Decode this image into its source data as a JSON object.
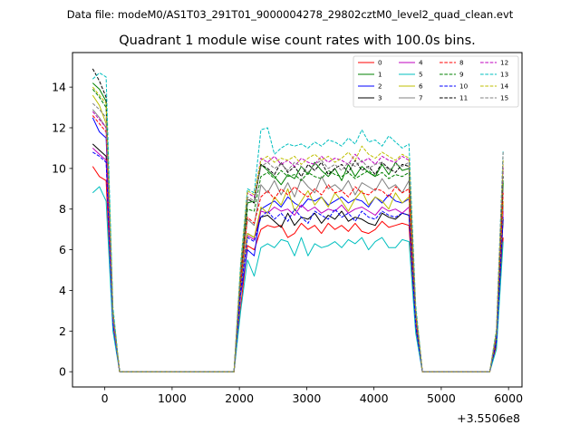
{
  "figure": {
    "suptitle": "Data file: modeM0/AS1T03_291T01_9000004278_29802cztM0_level2_quad_clean.evt"
  },
  "chart_data": {
    "type": "line",
    "title": "Quadrant 1 module wise count rates with 100.0s bins.",
    "xlabel": "",
    "ylabel": "",
    "x_offset_label": "+3.5506e8",
    "xlim": [
      -480,
      6200
    ],
    "ylim": [
      -0.75,
      15.7
    ],
    "x_ticks": [
      0,
      1000,
      2000,
      3000,
      4000,
      5000,
      6000
    ],
    "x_tick_labels": [
      "0",
      "1000",
      "2000",
      "3000",
      "4000",
      "5000",
      "6000"
    ],
    "y_ticks": [
      0,
      2,
      4,
      6,
      8,
      10,
      12,
      14
    ],
    "y_tick_labels": [
      "0",
      "2",
      "4",
      "6",
      "8",
      "10",
      "12",
      "14"
    ],
    "grid": false,
    "legend": {
      "placement": "top-right",
      "columns": 4
    },
    "x": [
      -180,
      -80,
      20,
      120,
      220,
      320,
      420,
      520,
      620,
      720,
      820,
      920,
      1020,
      1120,
      1220,
      1320,
      1420,
      1520,
      1620,
      1720,
      1820,
      1920,
      2020,
      2120,
      2220,
      2320,
      2420,
      2520,
      2620,
      2720,
      2820,
      2920,
      3020,
      3120,
      3220,
      3320,
      3420,
      3520,
      3620,
      3720,
      3820,
      3920,
      4020,
      4120,
      4220,
      4320,
      4420,
      4520,
      4620,
      4720,
      4820,
      4920,
      5020,
      5120,
      5220,
      5320,
      5420,
      5520,
      5620,
      5720,
      5820,
      5920
    ],
    "series": [
      {
        "name": "0",
        "color": "#ff0000",
        "dash": false,
        "values": [
          10.1,
          9.6,
          9.4,
          2.3,
          0,
          0,
          0,
          0,
          0,
          0,
          0,
          0,
          0,
          0,
          0,
          0,
          0,
          0,
          0,
          0,
          0,
          0,
          3.2,
          6.2,
          6.0,
          7.0,
          7.2,
          7.1,
          7.2,
          6.6,
          6.8,
          7.3,
          7.0,
          7.2,
          6.8,
          7.3,
          7.0,
          7.2,
          6.9,
          7.3,
          6.9,
          6.8,
          7.0,
          7.4,
          7.1,
          7.2,
          7.3,
          7.2,
          2.2,
          0,
          0,
          0,
          0,
          0,
          0,
          0,
          0,
          0,
          0,
          0,
          1.3,
          6.6
        ]
      },
      {
        "name": "1",
        "color": "#008000",
        "dash": false,
        "values": [
          14.2,
          13.9,
          13.3,
          2.9,
          0,
          0,
          0,
          0,
          0,
          0,
          0,
          0,
          0,
          0,
          0,
          0,
          0,
          0,
          0,
          0,
          0,
          0,
          4.8,
          8.3,
          8.4,
          10.2,
          9.9,
          9.6,
          9.2,
          9.7,
          9.5,
          10.1,
          9.7,
          10.3,
          9.9,
          9.6,
          10.0,
          9.4,
          10.2,
          9.6,
          10.1,
          9.8,
          9.6,
          10.2,
          9.7,
          10.3,
          9.9,
          10.0,
          3.0,
          0,
          0,
          0,
          0,
          0,
          0,
          0,
          0,
          0,
          0,
          0,
          1.8,
          9.3
        ]
      },
      {
        "name": "2",
        "color": "#0000ff",
        "dash": false,
        "values": [
          12.5,
          11.8,
          11.5,
          2.6,
          0,
          0,
          0,
          0,
          0,
          0,
          0,
          0,
          0,
          0,
          0,
          0,
          0,
          0,
          0,
          0,
          0,
          0,
          3.8,
          6.0,
          5.7,
          8.0,
          8.2,
          8.4,
          8.1,
          8.6,
          8.3,
          8.1,
          8.5,
          8.4,
          8.6,
          8.2,
          8.4,
          8.6,
          8.3,
          8.5,
          8.4,
          8.1,
          8.6,
          8.3,
          8.7,
          8.4,
          8.3,
          8.5,
          2.5,
          0,
          0,
          0,
          0,
          0,
          0,
          0,
          0,
          0,
          0,
          0,
          1.5,
          8.2
        ]
      },
      {
        "name": "3",
        "color": "#000000",
        "dash": false,
        "values": [
          11.2,
          10.9,
          10.6,
          2.5,
          0,
          0,
          0,
          0,
          0,
          0,
          0,
          0,
          0,
          0,
          0,
          0,
          0,
          0,
          0,
          0,
          0,
          0,
          4.2,
          6.8,
          6.6,
          7.6,
          7.7,
          7.4,
          7.1,
          7.8,
          7.2,
          7.6,
          7.5,
          7.8,
          7.3,
          7.7,
          7.5,
          7.9,
          7.4,
          7.6,
          7.5,
          7.3,
          7.2,
          7.8,
          7.6,
          7.5,
          7.8,
          7.7,
          2.3,
          0,
          0,
          0,
          0,
          0,
          0,
          0,
          0,
          0,
          0,
          0,
          1.5,
          7.5
        ]
      },
      {
        "name": "4",
        "color": "#bf00bf",
        "dash": false,
        "values": [
          11.0,
          10.7,
          10.4,
          2.5,
          0,
          0,
          0,
          0,
          0,
          0,
          0,
          0,
          0,
          0,
          0,
          0,
          0,
          0,
          0,
          0,
          0,
          0,
          4.1,
          6.7,
          6.5,
          7.9,
          7.8,
          8.1,
          7.9,
          8.0,
          7.7,
          8.2,
          7.9,
          8.1,
          7.8,
          8.0,
          7.9,
          8.2,
          7.8,
          8.0,
          8.1,
          7.9,
          7.7,
          8.1,
          7.9,
          8.0,
          7.8,
          8.1,
          2.4,
          0,
          0,
          0,
          0,
          0,
          0,
          0,
          0,
          0,
          0,
          0,
          1.6,
          7.9
        ]
      },
      {
        "name": "5",
        "color": "#00bfbf",
        "dash": false,
        "values": [
          8.8,
          9.1,
          8.4,
          2.0,
          0,
          0,
          0,
          0,
          0,
          0,
          0,
          0,
          0,
          0,
          0,
          0,
          0,
          0,
          0,
          0,
          0,
          0,
          3.0,
          5.5,
          4.7,
          6.1,
          6.3,
          6.1,
          6.5,
          6.4,
          5.7,
          6.6,
          5.7,
          6.3,
          6.1,
          6.2,
          6.4,
          6.1,
          6.5,
          6.3,
          6.6,
          6.0,
          6.4,
          6.6,
          6.1,
          6.1,
          6.5,
          6.4,
          1.9,
          0,
          0,
          0,
          0,
          0,
          0,
          0,
          0,
          0,
          0,
          0,
          1.1,
          6.4
        ]
      },
      {
        "name": "6",
        "color": "#bfbf00",
        "dash": false,
        "values": [
          13.6,
          13.1,
          12.2,
          2.8,
          0,
          0,
          0,
          0,
          0,
          0,
          0,
          0,
          0,
          0,
          0,
          0,
          0,
          0,
          0,
          0,
          0,
          0,
          4.0,
          6.8,
          6.6,
          8.1,
          7.8,
          8.6,
          8.2,
          9.0,
          7.9,
          8.4,
          8.9,
          8.2,
          8.6,
          8.1,
          8.8,
          8.4,
          7.9,
          8.5,
          8.9,
          8.2,
          8.6,
          8.4,
          8.0,
          8.8,
          8.3,
          8.6,
          2.6,
          0,
          0,
          0,
          0,
          0,
          0,
          0,
          0,
          0,
          0,
          0,
          1.6,
          8.4
        ]
      },
      {
        "name": "7",
        "color": "#808080",
        "dash": false,
        "values": [
          12.9,
          12.5,
          12.0,
          2.7,
          0,
          0,
          0,
          0,
          0,
          0,
          0,
          0,
          0,
          0,
          0,
          0,
          0,
          0,
          0,
          0,
          0,
          0,
          4.5,
          7.5,
          7.2,
          9.2,
          8.8,
          9.4,
          8.7,
          9.3,
          8.6,
          9.5,
          9.1,
          8.8,
          9.6,
          9.0,
          9.2,
          8.9,
          9.4,
          8.7,
          9.3,
          9.1,
          8.9,
          9.5,
          9.0,
          9.2,
          8.8,
          9.4,
          2.8,
          0,
          0,
          0,
          0,
          0,
          0,
          0,
          0,
          0,
          0,
          0,
          1.7,
          9.0
        ]
      },
      {
        "name": "8",
        "color": "#ff0000",
        "dash": true,
        "values": [
          12.6,
          12.2,
          11.8,
          2.6,
          0,
          0,
          0,
          0,
          0,
          0,
          0,
          0,
          0,
          0,
          0,
          0,
          0,
          0,
          0,
          0,
          0,
          0,
          4.5,
          7.6,
          7.3,
          8.6,
          8.9,
          8.5,
          9.0,
          8.7,
          9.1,
          8.8,
          8.6,
          9.0,
          8.7,
          9.2,
          8.8,
          8.9,
          8.6,
          9.1,
          8.8,
          8.7,
          9.0,
          8.9,
          8.6,
          9.1,
          8.8,
          9.0,
          2.7,
          0,
          0,
          0,
          0,
          0,
          0,
          0,
          0,
          0,
          0,
          0,
          1.7,
          8.8
        ]
      },
      {
        "name": "9",
        "color": "#008000",
        "dash": true,
        "values": [
          13.9,
          13.5,
          13.0,
          2.9,
          0,
          0,
          0,
          0,
          0,
          0,
          0,
          0,
          0,
          0,
          0,
          0,
          0,
          0,
          0,
          0,
          0,
          0,
          4.9,
          8.0,
          7.9,
          9.6,
          9.8,
          9.5,
          9.9,
          9.6,
          9.7,
          9.4,
          9.8,
          9.6,
          9.5,
          9.9,
          9.7,
          9.6,
          9.8,
          9.5,
          9.7,
          9.9,
          9.6,
          9.8,
          9.5,
          9.7,
          9.6,
          9.8,
          2.9,
          0,
          0,
          0,
          0,
          0,
          0,
          0,
          0,
          0,
          0,
          0,
          1.8,
          9.6
        ]
      },
      {
        "name": "10",
        "color": "#0000ff",
        "dash": true,
        "values": [
          10.8,
          10.6,
          10.3,
          2.4,
          0,
          0,
          0,
          0,
          0,
          0,
          0,
          0,
          0,
          0,
          0,
          0,
          0,
          0,
          0,
          0,
          0,
          0,
          4.0,
          6.6,
          6.4,
          7.6,
          7.9,
          7.5,
          7.8,
          7.4,
          8.0,
          7.6,
          7.3,
          7.9,
          7.7,
          7.5,
          8.0,
          7.6,
          7.8,
          7.4,
          7.9,
          7.6,
          7.5,
          7.9,
          7.7,
          7.6,
          7.8,
          7.7,
          2.3,
          0,
          0,
          0,
          0,
          0,
          0,
          0,
          0,
          0,
          0,
          0,
          1.5,
          7.6
        ]
      },
      {
        "name": "11",
        "color": "#000000",
        "dash": true,
        "values": [
          14.9,
          14.3,
          13.5,
          3.0,
          0,
          0,
          0,
          0,
          0,
          0,
          0,
          0,
          0,
          0,
          0,
          0,
          0,
          0,
          0,
          0,
          0,
          0,
          5.0,
          8.5,
          8.3,
          10.2,
          10.0,
          9.7,
          10.3,
          9.8,
          10.1,
          9.6,
          10.2,
          9.9,
          10.3,
          9.7,
          10.0,
          10.2,
          9.8,
          10.4,
          9.9,
          10.1,
          9.7,
          10.3,
          10.0,
          9.8,
          10.2,
          10.1,
          3.0,
          0,
          0,
          0,
          0,
          0,
          0,
          0,
          0,
          0,
          0,
          0,
          1.9,
          10.0
        ]
      },
      {
        "name": "12",
        "color": "#bf00bf",
        "dash": true,
        "values": [
          12.8,
          12.4,
          12.0,
          2.7,
          0,
          0,
          0,
          0,
          0,
          0,
          0,
          0,
          0,
          0,
          0,
          0,
          0,
          0,
          0,
          0,
          0,
          0,
          5.1,
          8.8,
          8.6,
          10.5,
          10.3,
          10.6,
          10.2,
          10.4,
          10.1,
          10.5,
          10.3,
          10.2,
          10.6,
          10.3,
          10.5,
          10.4,
          10.2,
          10.7,
          10.3,
          10.5,
          10.2,
          10.6,
          10.4,
          10.3,
          10.6,
          10.4,
          3.1,
          0,
          0,
          0,
          0,
          0,
          0,
          0,
          0,
          0,
          0,
          0,
          1.9,
          10.2
        ]
      },
      {
        "name": "13",
        "color": "#00bfbf",
        "dash": true,
        "values": [
          14.4,
          14.7,
          14.5,
          3.2,
          0,
          0,
          0,
          0,
          0,
          0,
          0,
          0,
          0,
          0,
          0,
          0,
          0,
          0,
          0,
          0,
          0,
          0,
          5.4,
          9.0,
          8.8,
          11.9,
          12.0,
          10.7,
          11.0,
          11.2,
          11.1,
          11.2,
          11.0,
          11.3,
          11.1,
          11.4,
          11.3,
          11.1,
          11.5,
          11.2,
          11.9,
          11.3,
          11.4,
          11.1,
          11.6,
          11.3,
          11.0,
          11.2,
          3.3,
          0,
          0,
          0,
          0,
          0,
          0,
          0,
          0,
          0,
          0,
          0,
          2.1,
          10.9
        ]
      },
      {
        "name": "14",
        "color": "#bfbf00",
        "dash": true,
        "values": [
          14.0,
          13.6,
          13.2,
          2.9,
          0,
          0,
          0,
          0,
          0,
          0,
          0,
          0,
          0,
          0,
          0,
          0,
          0,
          0,
          0,
          0,
          0,
          0,
          5.2,
          8.9,
          8.7,
          10.4,
          10.6,
          10.3,
          10.5,
          10.4,
          10.6,
          10.2,
          10.5,
          10.7,
          10.4,
          10.6,
          10.3,
          10.5,
          10.8,
          10.4,
          11.1,
          10.7,
          10.5,
          10.8,
          10.6,
          10.4,
          10.7,
          10.5,
          3.1,
          0,
          0,
          0,
          0,
          0,
          0,
          0,
          0,
          0,
          0,
          0,
          2.0,
          10.4
        ]
      },
      {
        "name": "15",
        "color": "#808080",
        "dash": true,
        "values": [
          13.2,
          12.9,
          12.5,
          2.8,
          0,
          0,
          0,
          0,
          0,
          0,
          0,
          0,
          0,
          0,
          0,
          0,
          0,
          0,
          0,
          0,
          0,
          0,
          5.0,
          8.6,
          8.4,
          10.1,
          10.3,
          10.0,
          10.2,
          9.9,
          10.3,
          10.1,
          9.8,
          10.2,
          10.4,
          10.0,
          10.2,
          9.9,
          10.3,
          10.1,
          10.4,
          10.0,
          10.2,
          10.3,
          9.9,
          10.2,
          10.1,
          10.3,
          3.0,
          0,
          0,
          0,
          0,
          0,
          0,
          0,
          0,
          0,
          0,
          0,
          1.9,
          10.8
        ]
      }
    ]
  }
}
